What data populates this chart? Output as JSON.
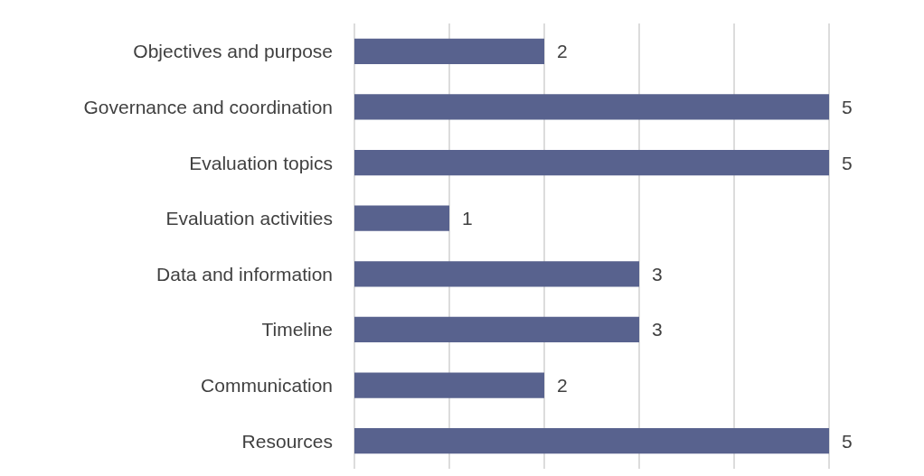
{
  "chart_data": {
    "type": "bar",
    "orientation": "horizontal",
    "categories": [
      "Objectives and purpose",
      "Governance and coordination",
      "Evaluation topics",
      "Evaluation activities",
      "Data and information",
      "Timeline",
      "Communication",
      "Resources"
    ],
    "values": [
      2,
      5,
      5,
      1,
      3,
      3,
      2,
      5
    ],
    "color": "#58628e",
    "xlim": [
      0,
      5
    ],
    "xticks": [
      {
        "value": 0,
        "label": null
      },
      {
        "value": 1,
        "label": null
      },
      {
        "value": 2,
        "label": null
      },
      {
        "value": 3,
        "label": null
      },
      {
        "value": 4,
        "label": null
      },
      {
        "value": 5,
        "label": null
      }
    ],
    "grid": "x",
    "data_labels": true,
    "tick_labels": "y"
  }
}
